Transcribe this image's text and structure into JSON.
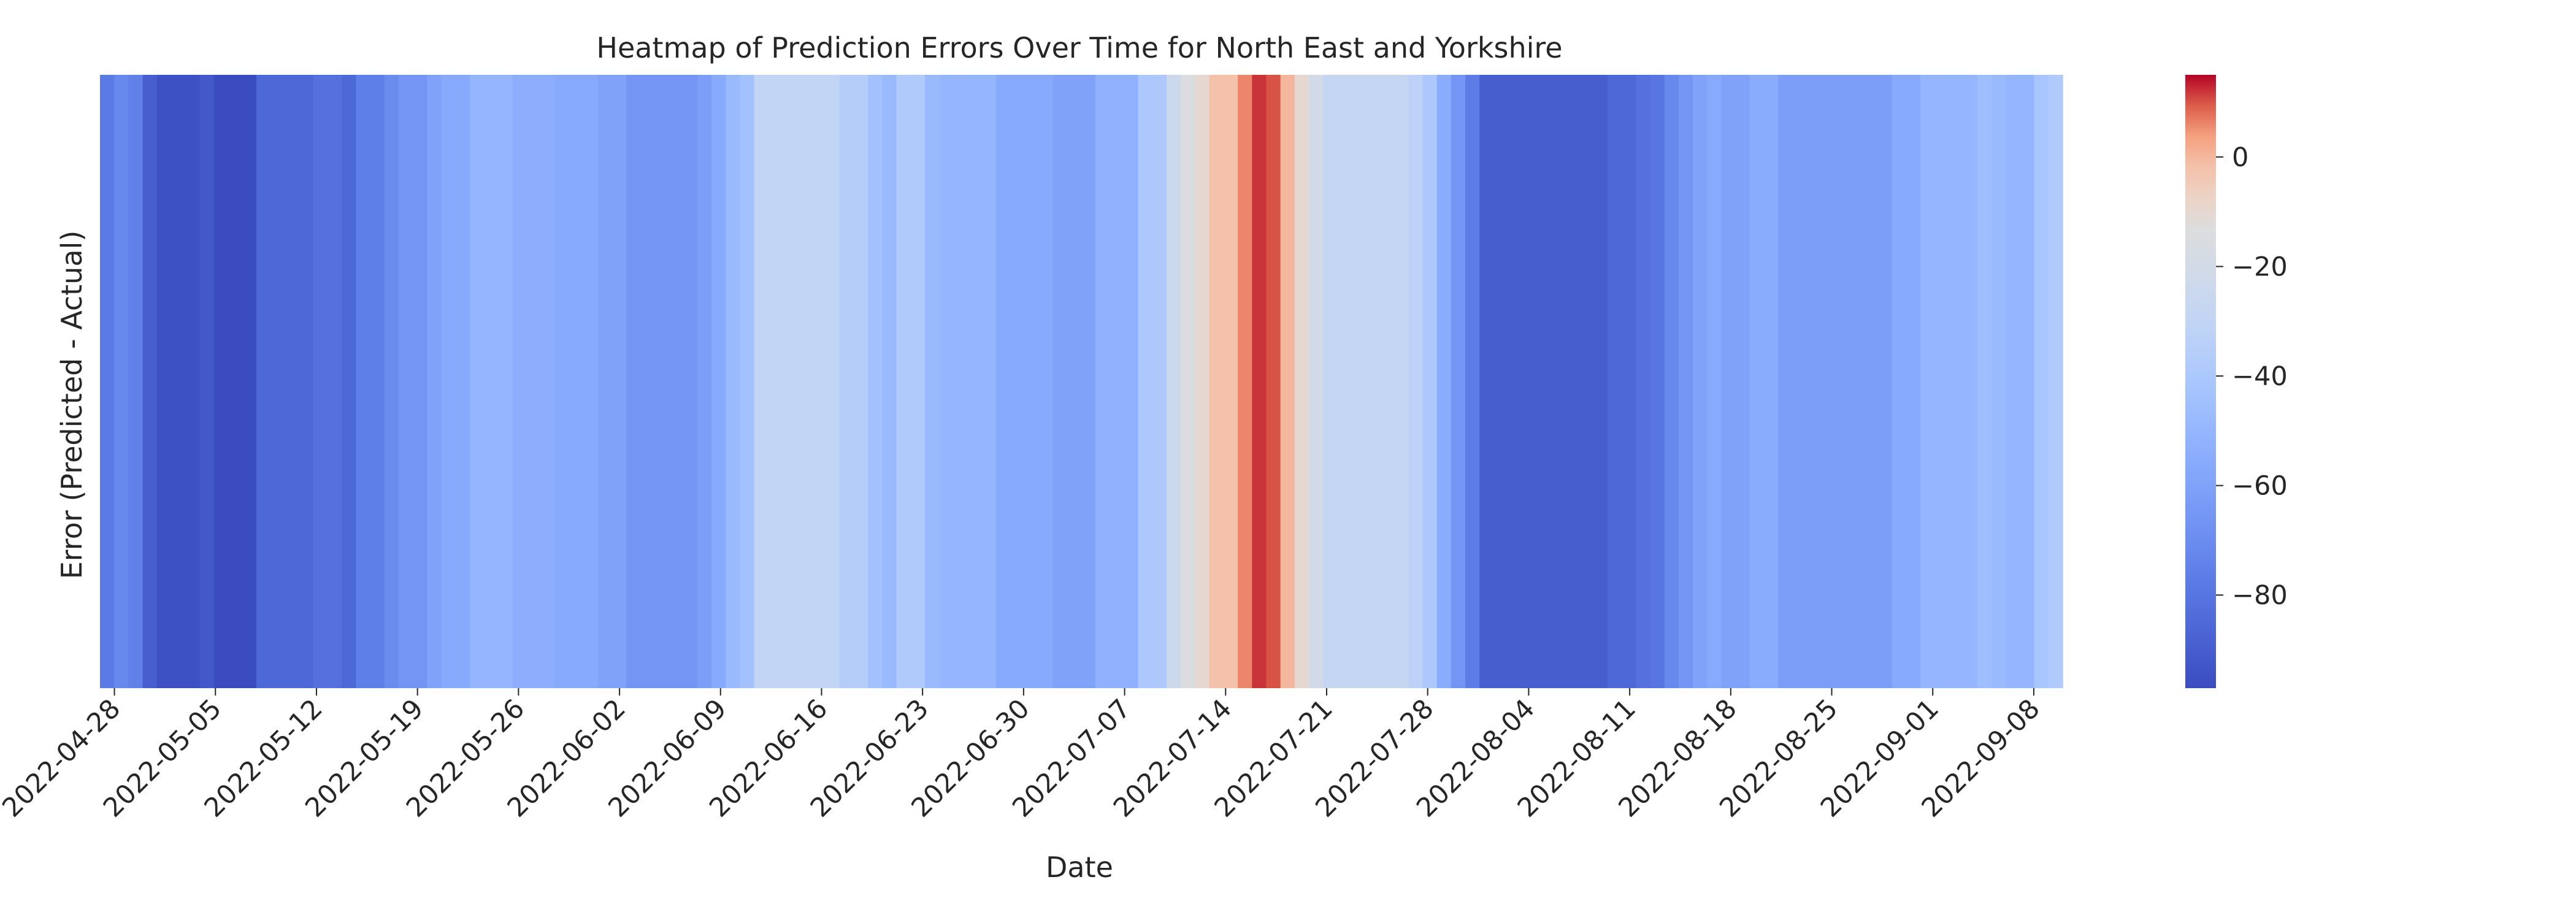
{
  "chart_data": {
    "type": "heatmap",
    "title": "Heatmap of Prediction Errors Over Time for North East and Yorkshire",
    "xlabel": "Date",
    "ylabel": "Error (Predicted - Actual)",
    "colormap": "coolwarm",
    "colorbar": {
      "range": [
        -97,
        15
      ],
      "ticks": [
        {
          "value": 0,
          "label": "0"
        },
        {
          "value": -20,
          "label": "−20"
        },
        {
          "value": -40,
          "label": "−40"
        },
        {
          "value": -60,
          "label": "−60"
        },
        {
          "value": -80,
          "label": "−80"
        }
      ]
    },
    "x_tick_labels": [
      "2022-04-28",
      "2022-05-05",
      "2022-05-12",
      "2022-05-19",
      "2022-05-26",
      "2022-06-02",
      "2022-06-09",
      "2022-06-16",
      "2022-06-23",
      "2022-06-30",
      "2022-07-07",
      "2022-07-14",
      "2022-07-21",
      "2022-07-28",
      "2022-08-04",
      "2022-08-11",
      "2022-08-18",
      "2022-08-25",
      "2022-09-01",
      "2022-09-08"
    ],
    "start_date": "2022-04-27",
    "end_date": "2022-09-10",
    "values": [
      -78,
      -72,
      -75,
      -90,
      -95,
      -95,
      -95,
      -92,
      -97,
      -97,
      -97,
      -86,
      -86,
      -86,
      -86,
      -82,
      -82,
      -86,
      -76,
      -76,
      -70,
      -66,
      -66,
      -60,
      -56,
      -56,
      -50,
      -50,
      -50,
      -54,
      -54,
      -54,
      -56,
      -56,
      -56,
      -60,
      -60,
      -66,
      -66,
      -66,
      -66,
      -66,
      -62,
      -56,
      -48,
      -44,
      -30,
      -30,
      -30,
      -30,
      -30,
      -30,
      -36,
      -36,
      -44,
      -48,
      -38,
      -38,
      -48,
      -50,
      -50,
      -50,
      -50,
      -56,
      -56,
      -56,
      -56,
      -60,
      -60,
      -60,
      -52,
      -52,
      -52,
      -40,
      -40,
      -24,
      -15,
      -10,
      -2,
      -2,
      6,
      12,
      10,
      0,
      -10,
      -20,
      -28,
      -28,
      -28,
      -28,
      -28,
      -28,
      -32,
      -40,
      -55,
      -66,
      -77,
      -90,
      -90,
      -90,
      -90,
      -90,
      -90,
      -90,
      -90,
      -90,
      -86,
      -86,
      -82,
      -80,
      -72,
      -66,
      -60,
      -56,
      -60,
      -60,
      -55,
      -55,
      -62,
      -62,
      -62,
      -62,
      -62,
      -62,
      -62,
      -62,
      -56,
      -56,
      -50,
      -50,
      -50,
      -50,
      -46,
      -48,
      -50,
      -50,
      -42,
      -38
    ]
  }
}
